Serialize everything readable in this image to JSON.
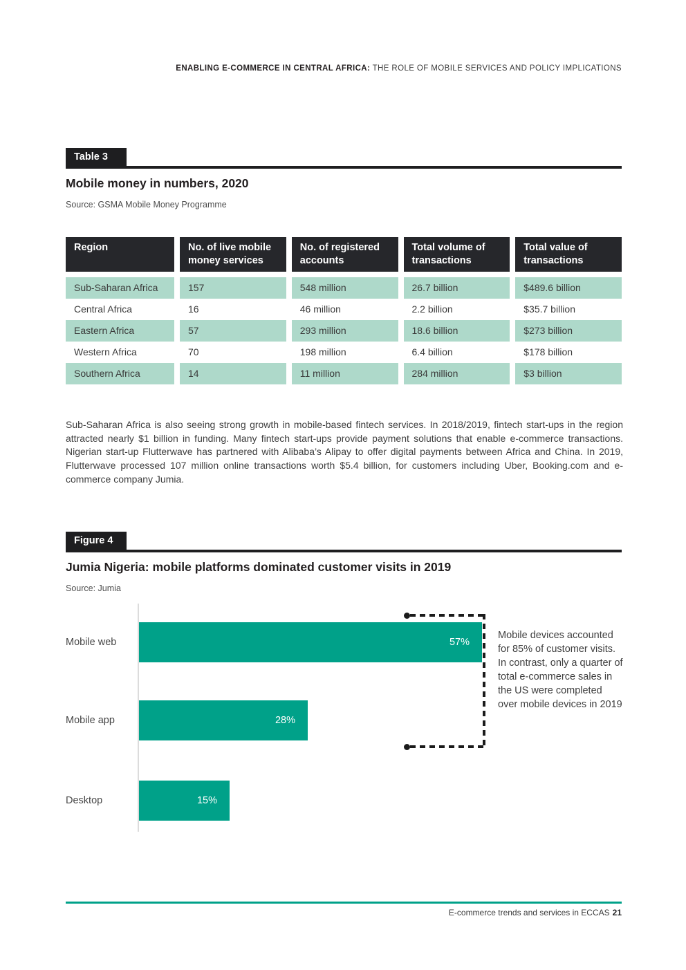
{
  "page_header": {
    "bold": "ENABLING E-COMMERCE IN CENTRAL AFRICA:",
    "regular": " THE ROLE OF MOBILE SERVICES AND POLICY IMPLICATIONS"
  },
  "table_section": {
    "badge": "Table 3",
    "title": "Mobile money in numbers, 2020",
    "source": "Source: GSMA Mobile Money Programme",
    "columns": [
      "Region",
      "No. of live mobile money services",
      "No. of registered accounts",
      "Total volume of transactions",
      "Total value of transactions"
    ],
    "rows": [
      [
        "Sub-Saharan Africa",
        "157",
        "548 million",
        "26.7 billion",
        "$489.6 billion"
      ],
      [
        "Central Africa",
        "16",
        "46 million",
        "2.2 billion",
        "$35.7 billion"
      ],
      [
        "Eastern Africa",
        "57",
        "293 million",
        "18.6 billion",
        "$273 billion"
      ],
      [
        "Western Africa",
        "70",
        "198 million",
        "6.4 billion",
        "$178 billion"
      ],
      [
        "Southern Africa",
        "14",
        "11 million",
        "284 million",
        "$3 billion"
      ]
    ]
  },
  "body_paragraph": "Sub-Saharan Africa is also seeing strong growth in mobile-based fintech services. In 2018/2019, fintech start-ups in the region attracted nearly $1 billion in funding. Many fintech start-ups provide payment solutions that enable e-commerce transactions. Nigerian start-up Flutterwave has partnered with Alibaba’s Alipay to offer digital payments between Africa and China. In 2019, Flutterwave processed 107 million online transactions worth $5.4 billion, for customers including Uber, Booking.com and e-commerce company Jumia.",
  "figure_section": {
    "badge": "Figure 4",
    "title": "Jumia Nigeria: mobile platforms dominated customer visits in 2019",
    "source": "Source: Jumia"
  },
  "chart_data": {
    "type": "bar",
    "orientation": "horizontal",
    "title": "Jumia Nigeria: mobile platforms dominated customer visits in 2019",
    "categories": [
      "Mobile web",
      "Mobile app",
      "Desktop"
    ],
    "values": [
      57,
      28,
      15
    ],
    "value_labels": [
      "57%",
      "28%",
      "15%"
    ],
    "xlim": [
      0,
      60
    ],
    "grid": false,
    "bar_color": "#00a189",
    "annotation": "Mobile devices accounted for 85% of customer visits. In contrast, only a quarter of total e-commerce sales in the US were completed over mobile devices in 2019"
  },
  "footer": {
    "text": "E-commerce trends and services in ECCAS",
    "page_number": "21"
  },
  "colors": {
    "accent_teal": "#00a189",
    "row_green": "#aed9ca",
    "header_dark": "#26272b",
    "badge_black": "#1e1e20"
  }
}
